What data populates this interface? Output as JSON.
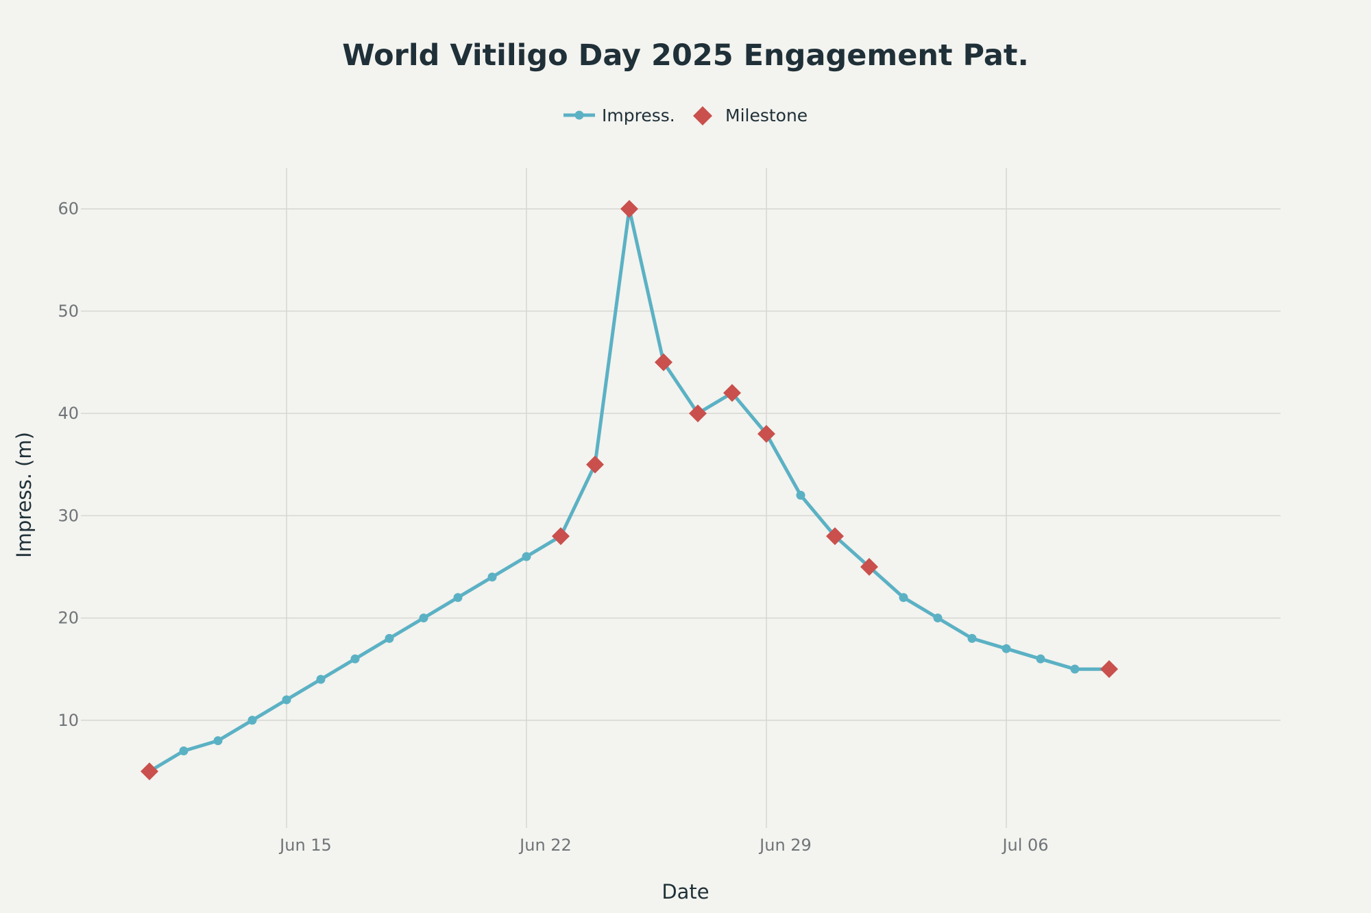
{
  "chart_data": {
    "type": "line",
    "title": "World Vitiligo Day 2025 Engagement Pat.",
    "xlabel": "Date",
    "ylabel": "Impress. (m)",
    "x_ticks": [
      "Jun 15",
      "Jun 22",
      "Jun 29",
      "Jul 06"
    ],
    "y_ticks": [
      10,
      20,
      30,
      40,
      50,
      60
    ],
    "xlim": [
      "2025-06-09",
      "2025-07-14"
    ],
    "ylim": [
      0,
      64
    ],
    "grid": true,
    "legend_placement": "top-center",
    "series": [
      {
        "name": "Impress.",
        "color": "#5bb1c4",
        "marker": "circle",
        "x": [
          "2025-06-11",
          "2025-06-12",
          "2025-06-13",
          "2025-06-14",
          "2025-06-15",
          "2025-06-16",
          "2025-06-17",
          "2025-06-18",
          "2025-06-19",
          "2025-06-20",
          "2025-06-21",
          "2025-06-22",
          "2025-06-23",
          "2025-06-24",
          "2025-06-25",
          "2025-06-26",
          "2025-06-27",
          "2025-06-28",
          "2025-06-29",
          "2025-06-30",
          "2025-07-01",
          "2025-07-02",
          "2025-07-03",
          "2025-07-04",
          "2025-07-05",
          "2025-07-06",
          "2025-07-07",
          "2025-07-08",
          "2025-07-09"
        ],
        "y": [
          5,
          7,
          8,
          10,
          12,
          14,
          16,
          18,
          20,
          22,
          24,
          26,
          28,
          35,
          60,
          45,
          40,
          42,
          38,
          32,
          28,
          25,
          22,
          20,
          18,
          17,
          16,
          15,
          15
        ]
      },
      {
        "name": "Milestone",
        "color": "#c9504c",
        "marker": "diamond",
        "x": [
          "2025-06-11",
          "2025-06-23",
          "2025-06-24",
          "2025-06-25",
          "2025-06-26",
          "2025-06-27",
          "2025-06-28",
          "2025-06-29",
          "2025-07-01",
          "2025-07-02",
          "2025-07-09"
        ],
        "y": [
          5,
          28,
          35,
          60,
          45,
          40,
          42,
          38,
          28,
          25,
          15
        ]
      }
    ]
  }
}
